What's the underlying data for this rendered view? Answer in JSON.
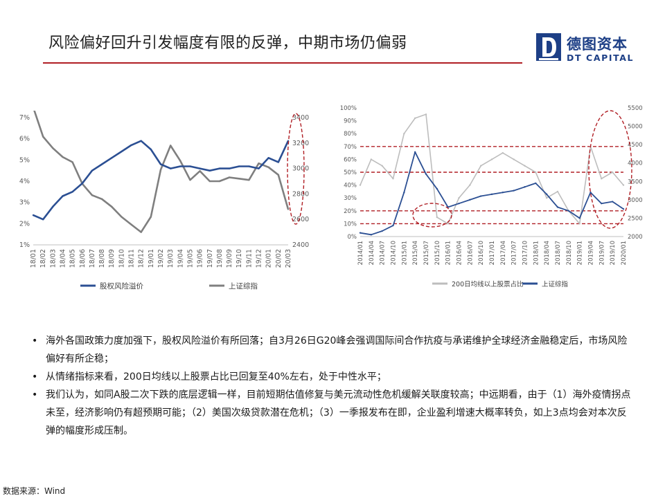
{
  "title": "风险偏好回升引发幅度有限的反弹，中期市场仍偏弱",
  "logo": {
    "cn": "德图资本",
    "en": "DT CAPITAL",
    "mark_letter": "D",
    "color": "#1d3f86"
  },
  "colors": {
    "accent": "#b01e24",
    "navy": "#2b4f93",
    "gray": "#7f7f7f",
    "lightgray": "#bdbdbd"
  },
  "chart_data": [
    {
      "type": "line",
      "x_ticks": [
        "18/01",
        "18/02",
        "18/03",
        "18/04",
        "18/05",
        "18/06",
        "18/07",
        "18/08",
        "18/09",
        "18/10",
        "18/11",
        "18/12",
        "19/01",
        "19/02",
        "19/03",
        "19/04",
        "19/05",
        "19/06",
        "19/07",
        "19/08",
        "19/09",
        "19/10",
        "19/11",
        "19/12",
        "20/01",
        "20/02",
        "20/03"
      ],
      "y_left_ticks": [
        "1%",
        "2%",
        "3%",
        "4%",
        "5%",
        "6%",
        "7%"
      ],
      "y_left_lim": [
        1,
        7
      ],
      "y_right_ticks": [
        "2400",
        "2600",
        "2800",
        "3000",
        "3200",
        "3400"
      ],
      "y_right_lim": [
        2400,
        3400
      ],
      "series": [
        {
          "name": "股权风险溢价",
          "color": "#2b4f93",
          "axis": "left",
          "values": [
            2.4,
            2.2,
            2.8,
            3.3,
            3.5,
            3.9,
            4.5,
            4.8,
            5.1,
            5.4,
            5.7,
            5.9,
            5.5,
            4.8,
            4.6,
            4.7,
            4.7,
            4.6,
            4.5,
            4.6,
            4.6,
            4.7,
            4.7,
            4.6,
            5.1,
            4.9,
            5.9
          ]
        },
        {
          "name": "上证综指",
          "color": "#7f7f7f",
          "axis": "right",
          "values": [
            3480,
            3250,
            3160,
            3090,
            3050,
            2880,
            2790,
            2760,
            2700,
            2620,
            2560,
            2500,
            2620,
            2990,
            3180,
            3060,
            2910,
            2980,
            2900,
            2900,
            2930,
            2920,
            2910,
            3040,
            3010,
            2950,
            2680
          ]
        }
      ],
      "legend": "bottom",
      "highlight": "ellipse on latest values (2020/03)"
    },
    {
      "type": "line",
      "x_ticks": [
        "2014/01",
        "2014/04",
        "2014/07",
        "2014/10",
        "2015/01",
        "2015/04",
        "2015/07",
        "2015/10",
        "2016/01",
        "2016/04",
        "2016/07",
        "2016/10",
        "2017/01",
        "2017/04",
        "2017/07",
        "2017/10",
        "2018/01",
        "2018/04",
        "2018/07",
        "2018/10",
        "2019/01",
        "2019/04",
        "2019/07",
        "2019/10",
        "2020/01"
      ],
      "y_left_ticks": [
        "0%",
        "10%",
        "20%",
        "30%",
        "40%",
        "50%",
        "60%",
        "70%",
        "80%",
        "90%",
        "100%"
      ],
      "y_left_lim": [
        0,
        100
      ],
      "y_right_ticks": [
        "2000",
        "2500",
        "3000",
        "3500",
        "4000",
        "4500",
        "5000",
        "5500"
      ],
      "y_right_lim": [
        2000,
        5500
      ],
      "series": [
        {
          "name": "200日均线以上股票占比",
          "color": "#bdbdbd",
          "axis": "left",
          "values": [
            40,
            60,
            55,
            45,
            80,
            92,
            95,
            15,
            10,
            30,
            40,
            55,
            60,
            65,
            60,
            55,
            50,
            30,
            35,
            20,
            10,
            70,
            45,
            50,
            40
          ]
        },
        {
          "name": "上证综指",
          "color": "#2b4f93",
          "axis": "right",
          "values": [
            2100,
            2050,
            2150,
            2300,
            3200,
            4300,
            3700,
            3300,
            2800,
            2900,
            3000,
            3100,
            3150,
            3200,
            3250,
            3350,
            3450,
            3150,
            2800,
            2700,
            2500,
            3200,
            2900,
            2950,
            2750
          ]
        }
      ],
      "reference_lines": [
        70,
        50,
        20,
        10
      ],
      "reference_line_color": "#b01e24",
      "legend": "bottom",
      "highlight": [
        "ellipse 2015/07-2015/10 lows",
        "ellipse 2019/04-2020/01"
      ]
    }
  ],
  "bullets": [
    "海外各国政策力度加强下，股权风险溢价有所回落；自3月26日G20峰会强调国际间合作抗疫与承诺维护全球经济金融稳定后，市场风险偏好有所企稳；",
    "从情绪指标来看，200日均线以上股票占比已回复至40%左右，处于中性水平；",
    "我们认为，如同A股二次下跌的底层逻辑一样，目前短期估值修复与美元流动性危机缓解关联度较高；中远期看，由于（1）海外疫情拐点未至，经济影响仍有超预期可能；（2）美国次级贷款潜在危机；（3）一季报发布在即，企业盈利增速大概率转负，如上3点均会对本次反弹的幅度形成压制。"
  ],
  "source": "数据来源：Wind"
}
